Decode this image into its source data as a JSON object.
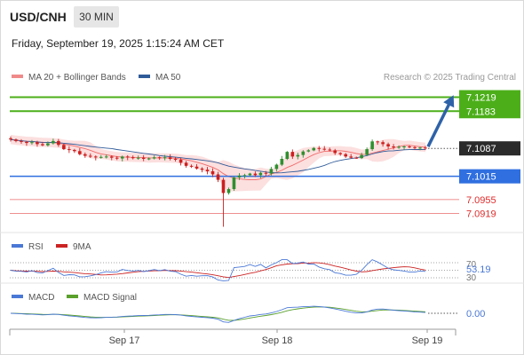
{
  "header": {
    "symbol": "USD/CNH",
    "timeframe": "30 MIN",
    "datetime": "Friday, September 19, 2025 1:15:24 AM CET",
    "credit": "Research © 2025 Trading Central"
  },
  "colors": {
    "accent_green": "#4caf1a",
    "target_red": "#e02b2b",
    "pivot_blue": "#2f6fe0",
    "ma50": "#2f5b99",
    "bollinger_fill": "#fbd9d9",
    "ma20": "#f06a6a",
    "candle_green": "#2f8f2f",
    "candle_red": "#cc1f1f",
    "arrow": "#2e62a8",
    "rsi_line": "#4a78d6",
    "rsi_ma": "#cc2222",
    "macd_line": "#4a78d6",
    "macd_signal": "#5aa02c"
  },
  "chart_data": [
    {
      "type": "candlestick",
      "panel": "price",
      "legend": [
        {
          "name": "MA 20 + Bollinger Bands",
          "color": "#f08a8a"
        },
        {
          "name": "MA 50",
          "color": "#2f5b99"
        }
      ],
      "x_ticks": [
        "Sep 17",
        "Sep 18",
        "Sep 19"
      ],
      "ylim": [
        7.087,
        7.125
      ],
      "close_path": [
        7.111,
        7.1106,
        7.1104,
        7.1101,
        7.1103,
        7.1098,
        7.1095,
        7.11,
        7.1106,
        7.1096,
        7.1085,
        7.1083,
        7.108,
        7.1072,
        7.1068,
        7.1066,
        7.1064,
        7.1065,
        7.1066,
        7.1063,
        7.1061,
        7.1066,
        7.1064,
        7.1062,
        7.1063,
        7.106,
        7.1061,
        7.1064,
        7.1062,
        7.1064,
        7.106,
        7.1058,
        7.105,
        7.1042,
        7.104,
        7.1035,
        7.1032,
        7.1028,
        7.102,
        7.1006,
        7.0972,
        7.0982,
        7.1012,
        7.1017,
        7.1018,
        7.1022,
        7.1018,
        7.1024,
        7.1022,
        7.1034,
        7.1045,
        7.106,
        7.1078,
        7.1066,
        7.107,
        7.1079,
        7.1082,
        7.1088,
        7.1086,
        7.1084,
        7.1082,
        7.1075,
        7.1072,
        7.1066,
        7.1063,
        7.1062,
        7.107,
        7.1085,
        7.1105,
        7.1103,
        7.1098,
        7.1092,
        7.109,
        7.1091,
        7.1092,
        7.109,
        7.1088,
        7.1089,
        7.1087
      ],
      "levels": [
        {
          "label": "7.1219",
          "value": 7.1219,
          "kind": "target-1"
        },
        {
          "label": "7.1183",
          "value": 7.1183,
          "kind": "target-2"
        },
        {
          "label": "7.1087",
          "value": 7.1087,
          "kind": "last-price"
        },
        {
          "label": "7.1015",
          "value": 7.1015,
          "kind": "pivot"
        },
        {
          "label": "7.0955",
          "value": 7.0955,
          "kind": "support-1"
        },
        {
          "label": "7.0919",
          "value": 7.0919,
          "kind": "support-2"
        }
      ]
    },
    {
      "type": "line",
      "panel": "rsi",
      "legend": [
        {
          "name": "RSI",
          "color": "#4a78d6"
        },
        {
          "name": "9MA",
          "color": "#cc2222"
        }
      ],
      "ylim": [
        30,
        70
      ],
      "ticks": [
        "70",
        "30"
      ],
      "last_value_label": "53.19"
    },
    {
      "type": "line",
      "panel": "macd",
      "legend": [
        {
          "name": "MACD",
          "color": "#4a78d6"
        },
        {
          "name": "MACD Signal",
          "color": "#5aa02c"
        }
      ],
      "last_value_label": "0.00"
    }
  ]
}
